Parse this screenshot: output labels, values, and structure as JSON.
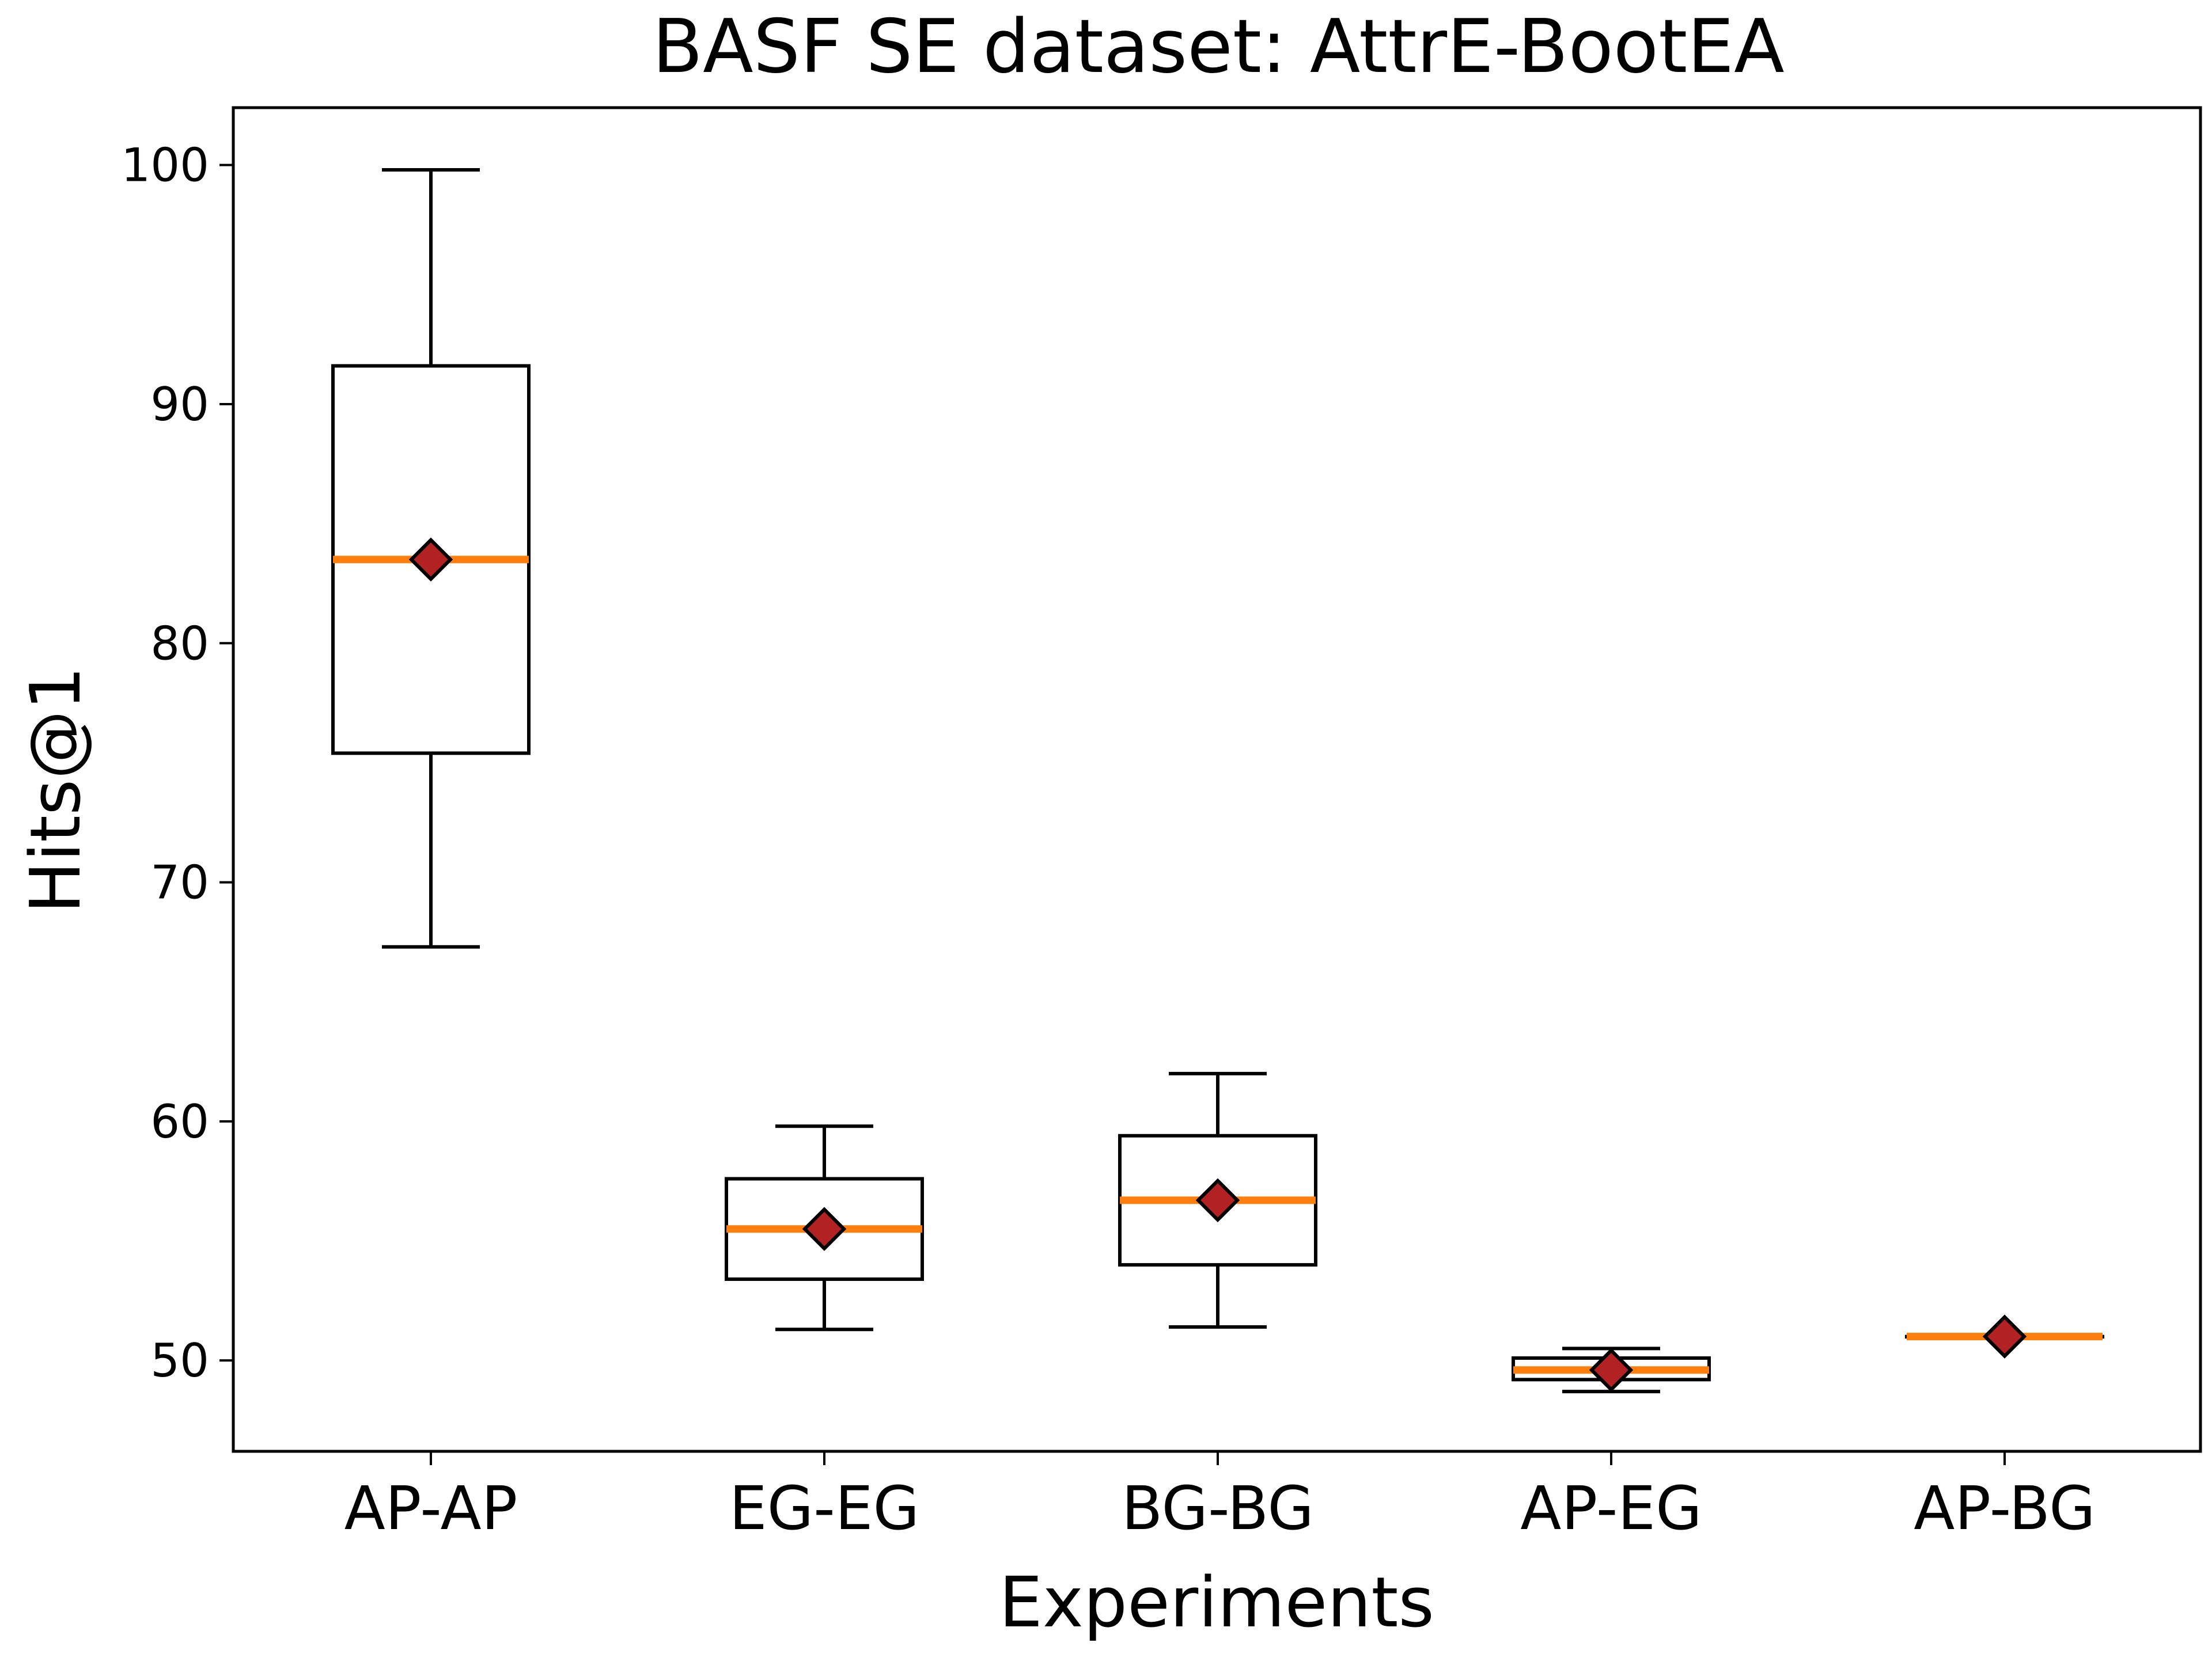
{
  "chart_data": {
    "type": "box",
    "title": "BASF SE dataset: AttrE-BootEA",
    "xlabel": "Experiments",
    "ylabel": "Hits@1",
    "ylim": [
      46.2,
      102.4
    ],
    "yticks": [
      50,
      60,
      70,
      80,
      90,
      100
    ],
    "grid": false,
    "legend": "none",
    "categories": [
      "AP-AP",
      "EG-EG",
      "BG-BG",
      "AP-EG",
      "AP-BG"
    ],
    "boxes": [
      {
        "category": "AP-AP",
        "whisker_low": 67.3,
        "q1": 75.4,
        "median": 83.5,
        "q3": 91.6,
        "whisker_high": 99.8,
        "mean": 83.5
      },
      {
        "category": "EG-EG",
        "whisker_low": 51.3,
        "q1": 53.4,
        "median": 55.5,
        "q3": 57.6,
        "whisker_high": 59.8,
        "mean": 55.5
      },
      {
        "category": "BG-BG",
        "whisker_low": 51.4,
        "q1": 54.0,
        "median": 56.7,
        "q3": 59.4,
        "whisker_high": 62.0,
        "mean": 56.7
      },
      {
        "category": "AP-EG",
        "whisker_low": 48.7,
        "q1": 49.2,
        "median": 49.6,
        "q3": 50.1,
        "whisker_high": 50.5,
        "mean": 49.6
      },
      {
        "category": "AP-BG",
        "whisker_low": 51.0,
        "q1": 51.0,
        "median": 51.0,
        "q3": 51.0,
        "whisker_high": 51.0,
        "mean": 51.0
      }
    ],
    "colors": {
      "box_edge": "#000000",
      "median": "#ff7f0e",
      "mean_marker": "#b22222",
      "mean_marker_edge": "#000000"
    }
  }
}
